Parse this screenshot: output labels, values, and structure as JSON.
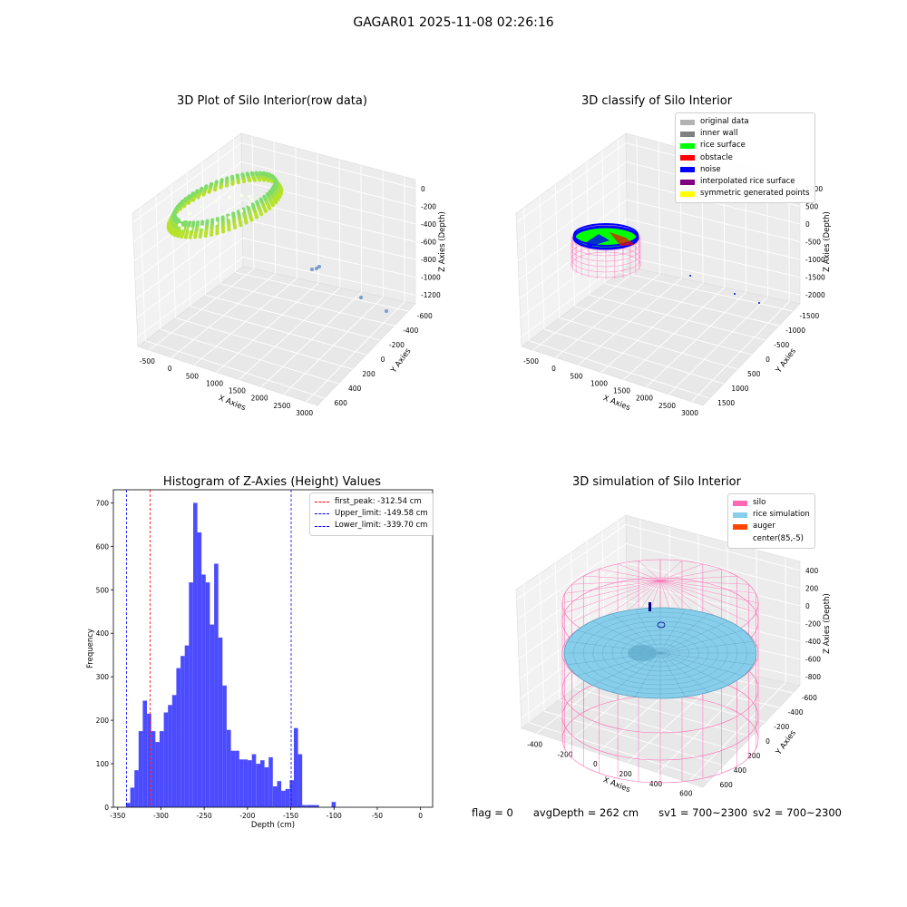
{
  "page_title": "GAGAR01 2025-11-08 02:26:16",
  "footer": {
    "flag": "flag = 0",
    "avg": "avgDepth = 262 cm",
    "sv1": "sv1 = 700~2300",
    "sv2": "sv2 = 700~2300"
  },
  "colors": {
    "silo": "#ff69b4",
    "rice_sim": "#87ceeb",
    "auger": "#ff4500",
    "hist": "#0000ff"
  },
  "chart_data": [
    {
      "type": "scatter",
      "title": "3D Plot of Silo Interior(row data)",
      "xlabel": "X Axies",
      "ylabel": "Y Axies",
      "zlabel": "Z Axies (Depth)",
      "x_ticks": [
        "-500",
        "0",
        "500",
        "1000",
        "1500",
        "2000",
        "2500",
        "3000"
      ],
      "y_ticks": [
        "-600",
        "-400",
        "-200",
        "0",
        "200",
        "400",
        "600"
      ],
      "z_ticks": [
        "0",
        "-200",
        "-400",
        "-600",
        "-800",
        "-1000",
        "-1200"
      ],
      "grid": true
    },
    {
      "type": "scatter",
      "title": "3D classify of Silo Interior",
      "xlabel": "X Axies",
      "ylabel": "Y Axies",
      "zlabel": "Z Axies (Depth)",
      "x_ticks": [
        "-500",
        "0",
        "500",
        "1000",
        "1500",
        "2000",
        "2500",
        "3000"
      ],
      "y_ticks": [
        "-1500",
        "-1000",
        "-500",
        "0",
        "500",
        "1000",
        "1500"
      ],
      "z_ticks": [
        "1000",
        "500",
        "0",
        "-500",
        "-1000",
        "-1500",
        "-2000"
      ],
      "legend_position": "top-right",
      "legend": [
        {
          "label": "original data",
          "color": "#b3b3b3"
        },
        {
          "label": "inner wall",
          "color": "#808080"
        },
        {
          "label": "rice surface",
          "color": "#00ff00"
        },
        {
          "label": "obstacle",
          "color": "#ff0000"
        },
        {
          "label": "noise",
          "color": "#0000ff"
        },
        {
          "label": "interpolated rice surface",
          "color": "#800080"
        },
        {
          "label": "symmetric generated points",
          "color": "#ffff00"
        }
      ],
      "grid": true
    },
    {
      "type": "bar",
      "title": "Histogram of Z-Axies (Height) Values",
      "xlabel": "Depth (cm)",
      "ylabel": "Frequency",
      "xlim": [
        -355,
        14
      ],
      "ylim": [
        0,
        730
      ],
      "x_ticks": [
        -350,
        -300,
        -250,
        -200,
        -150,
        -100,
        -50,
        0
      ],
      "y_ticks": [
        0,
        100,
        200,
        300,
        400,
        500,
        600,
        700
      ],
      "bin_start": -340.4,
      "bin_width": 4.85,
      "values": [
        10,
        45,
        85,
        175,
        245,
        215,
        175,
        150,
        175,
        218,
        235,
        258,
        320,
        348,
        372,
        517,
        700,
        632,
        535,
        517,
        420,
        560,
        390,
        280,
        178,
        130,
        130,
        110,
        110,
        108,
        122,
        100,
        108,
        92,
        115,
        48,
        60,
        38,
        42,
        62,
        182,
        122,
        5,
        5,
        5,
        5,
        0,
        0,
        0,
        12
      ],
      "vlines": [
        {
          "label": "first_peak: -312.54 cm",
          "x": -312.54,
          "color": "#ff0000"
        },
        {
          "label": "Upper_limit: -149.58 cm",
          "x": -149.58,
          "color": "#0000ff"
        },
        {
          "label": "Lower_limit: -339.70 cm",
          "x": -339.7,
          "color": "#0000ff"
        }
      ],
      "legend_position": "top-right",
      "grid": false
    },
    {
      "type": "surface",
      "title": "3D simulation of Silo Interior",
      "xlabel": "X Axies",
      "ylabel": "Y Axies",
      "zlabel": "Z Axies (Depth)",
      "x_ticks": [
        "-400",
        "-200",
        "0",
        "200",
        "400",
        "600"
      ],
      "y_ticks": [
        "-600",
        "-400",
        "-200",
        "0",
        "200",
        "400",
        "600"
      ],
      "z_ticks": [
        "400",
        "200",
        "0",
        "-200",
        "-400",
        "-600",
        "-800"
      ],
      "legend_position": "top-right",
      "legend": [
        {
          "label": "silo",
          "color": "#ff69b4"
        },
        {
          "label": "rice simulation",
          "color": "#87ceeb"
        },
        {
          "label": "auger",
          "color": "#ff4500"
        },
        {
          "label": "center(85,-5)",
          "color": "#ffffff"
        }
      ],
      "grid": true
    }
  ]
}
